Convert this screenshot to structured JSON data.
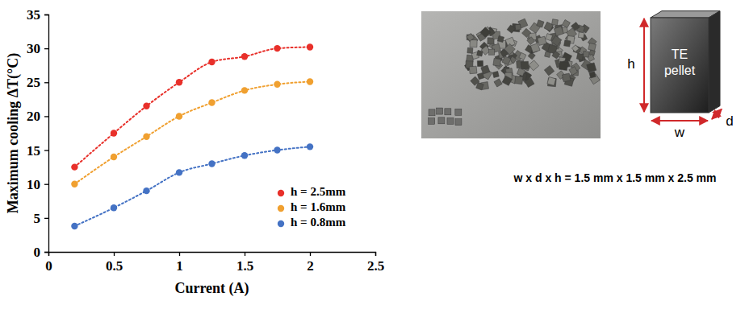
{
  "chart_data": {
    "type": "scatter",
    "x_label": "Current (A)",
    "y_label": "Maximum cooling ΔT(°C)",
    "x": [
      0.2,
      0.5,
      0.75,
      1,
      1.25,
      1.5,
      1.75,
      2
    ],
    "series": [
      {
        "name": "h = 2.5mm",
        "color": "#e8302a",
        "values": [
          12.5,
          17.5,
          21.5,
          25,
          28,
          28.8,
          30,
          30.2
        ]
      },
      {
        "name": "h = 1.6mm",
        "color": "#f0a030",
        "values": [
          10,
          14,
          17,
          20,
          22,
          23.8,
          24.7,
          25.1
        ]
      },
      {
        "name": "h = 0.8mm",
        "color": "#4472c4",
        "values": [
          3.8,
          6.5,
          9,
          11.7,
          13,
          14.2,
          15,
          15.5
        ]
      }
    ],
    "xlim": [
      0,
      2.5
    ],
    "xticks": [
      0,
      0.5,
      1,
      1.5,
      2,
      2.5
    ],
    "ylim": [
      0,
      35
    ],
    "yticks": [
      0,
      5,
      10,
      15,
      20,
      25,
      30,
      35
    ],
    "grid": false,
    "legend": "lower right",
    "marker": "circle",
    "line_style": "dotted"
  },
  "diagram": {
    "pellet_label": [
      "TE",
      "pellet"
    ],
    "h": "h",
    "w": "w",
    "d": "d",
    "caption": "w x d x h = 1.5 mm x 1.5 mm x 2.5 mm"
  }
}
